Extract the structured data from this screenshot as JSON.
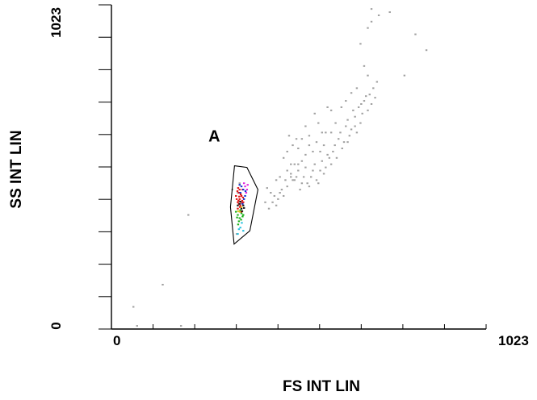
{
  "chart_data": {
    "type": "scatter",
    "title": "",
    "xlabel": "FS INT LIN",
    "ylabel": "SS INT LIN",
    "xlim": [
      0,
      1023
    ],
    "ylim": [
      0,
      1023
    ],
    "x_tick_labels": [
      {
        "value": 0,
        "label": "0"
      },
      {
        "value": 1023,
        "label": "1023"
      }
    ],
    "y_tick_labels": [
      {
        "value": 0,
        "label": "0"
      },
      {
        "value": 1023,
        "label": "1023"
      }
    ],
    "grid": false,
    "gate": {
      "label": "A",
      "polygon": [
        [
          336,
          515
        ],
        [
          370,
          510
        ],
        [
          400,
          440
        ],
        [
          378,
          310
        ],
        [
          335,
          268
        ],
        [
          325,
          385
        ]
      ]
    },
    "series": [
      {
        "color": "#a0a0a0",
        "points": [
          [
            60,
            70
          ],
          [
            70,
            10
          ],
          [
            140,
            140
          ],
          [
            190,
            10
          ],
          [
            210,
            360
          ],
          [
            330,
            440
          ],
          [
            345,
            430
          ],
          [
            350,
            460
          ],
          [
            342,
            300
          ],
          [
            420,
            400
          ],
          [
            430,
            380
          ],
          [
            440,
            400
          ],
          [
            445,
            420
          ],
          [
            450,
            390
          ],
          [
            455,
            410
          ],
          [
            460,
            430
          ],
          [
            465,
            440
          ],
          [
            470,
            420
          ],
          [
            475,
            470
          ],
          [
            480,
            450
          ],
          [
            490,
            480
          ],
          [
            500,
            470
          ],
          [
            510,
            500
          ],
          [
            515,
            440
          ],
          [
            520,
            460
          ],
          [
            525,
            480
          ],
          [
            530,
            510
          ],
          [
            535,
            460
          ],
          [
            540,
            450
          ],
          [
            545,
            480
          ],
          [
            550,
            500
          ],
          [
            555,
            520
          ],
          [
            560,
            470
          ],
          [
            565,
            460
          ],
          [
            570,
            500
          ],
          [
            575,
            530
          ],
          [
            580,
            490
          ],
          [
            585,
            510
          ],
          [
            590,
            550
          ],
          [
            595,
            540
          ],
          [
            600,
            520
          ],
          [
            605,
            560
          ],
          [
            610,
            580
          ],
          [
            615,
            540
          ],
          [
            620,
            600
          ],
          [
            625,
            620
          ],
          [
            630,
            570
          ],
          [
            635,
            590
          ],
          [
            640,
            640
          ],
          [
            645,
            660
          ],
          [
            650,
            610
          ],
          [
            655,
            630
          ],
          [
            660,
            690
          ],
          [
            665,
            670
          ],
          [
            670,
            620
          ],
          [
            675,
            700
          ],
          [
            680,
            650
          ],
          [
            685,
            680
          ],
          [
            690,
            720
          ],
          [
            700,
            690
          ],
          [
            705,
            740
          ],
          [
            710,
            710
          ],
          [
            715,
            760
          ],
          [
            720,
            730
          ],
          [
            725,
            780
          ],
          [
            700,
            800
          ],
          [
            690,
            830
          ],
          [
            680,
            900
          ],
          [
            700,
            950
          ],
          [
            710,
            970
          ],
          [
            730,
            990
          ],
          [
            760,
            1000
          ],
          [
            710,
            1010
          ],
          [
            800,
            800
          ],
          [
            830,
            930
          ],
          [
            860,
            880
          ],
          [
            510,
            570
          ],
          [
            520,
            600
          ],
          [
            530,
            640
          ],
          [
            540,
            610
          ],
          [
            555,
            680
          ],
          [
            565,
            650
          ],
          [
            575,
            620
          ],
          [
            590,
            700
          ],
          [
            600,
            690
          ],
          [
            470,
            540
          ],
          [
            480,
            560
          ],
          [
            490,
            520
          ],
          [
            495,
            580
          ],
          [
            505,
            600
          ],
          [
            485,
            610
          ],
          [
            460,
            480
          ],
          [
            450,
            470
          ],
          [
            435,
            430
          ],
          [
            425,
            445
          ],
          [
            550,
            560
          ],
          [
            560,
            590
          ],
          [
            540,
            580
          ],
          [
            530,
            550
          ],
          [
            520,
            530
          ],
          [
            510,
            520
          ],
          [
            490,
            490
          ],
          [
            480,
            500
          ],
          [
            500,
            520
          ],
          [
            505,
            480
          ],
          [
            495,
            470
          ],
          [
            612,
            650
          ],
          [
            628,
            700
          ],
          [
            640,
            720
          ],
          [
            655,
            745
          ],
          [
            670,
            760
          ],
          [
            600,
            620
          ],
          [
            580,
            580
          ],
          [
            570,
            560
          ],
          [
            585,
            620
          ],
          [
            645,
            590
          ],
          [
            665,
            640
          ],
          [
            682,
            710
          ],
          [
            695,
            735
          ]
        ]
      },
      {
        "color": "#e01010",
        "points": [
          [
            340,
            420
          ],
          [
            345,
            400
          ],
          [
            348,
            430
          ],
          [
            350,
            410
          ],
          [
            352,
            390
          ],
          [
            355,
            420
          ],
          [
            358,
            440
          ],
          [
            360,
            400
          ],
          [
            345,
            380
          ],
          [
            350,
            440
          ],
          [
            355,
            370
          ],
          [
            342,
            410
          ],
          [
            348,
            395
          ],
          [
            353,
            425
          ],
          [
            357,
            405
          ],
          [
            346,
            445
          ],
          [
            351,
            385
          ],
          [
            359,
            415
          ],
          [
            344,
            435
          ],
          [
            356,
            398
          ],
          [
            349,
            418
          ],
          [
            347,
            405
          ]
        ]
      },
      {
        "color": "#18b018",
        "points": [
          [
            345,
            360
          ],
          [
            350,
            350
          ],
          [
            355,
            365
          ],
          [
            340,
            370
          ],
          [
            348,
            340
          ],
          [
            358,
            355
          ],
          [
            352,
            375
          ],
          [
            346,
            330
          ],
          [
            354,
            345
          ],
          [
            360,
            360
          ],
          [
            343,
            352
          ]
        ]
      },
      {
        "color": "#1030d0",
        "points": [
          [
            352,
            430
          ],
          [
            360,
            440
          ],
          [
            365,
            420
          ],
          [
            355,
            450
          ],
          [
            362,
            410
          ],
          [
            358,
            395
          ],
          [
            366,
            435
          ],
          [
            350,
            455
          ]
        ]
      },
      {
        "color": "#e020e0",
        "points": [
          [
            365,
            450
          ],
          [
            368,
            430
          ],
          [
            362,
            460
          ],
          [
            370,
            440
          ],
          [
            372,
            455
          ]
        ]
      },
      {
        "color": "#20c0e0",
        "points": [
          [
            345,
            300
          ],
          [
            352,
            320
          ],
          [
            360,
            310
          ],
          [
            356,
            335
          ],
          [
            348,
            315
          ]
        ]
      },
      {
        "color": "#101010",
        "points": [
          [
            350,
            395
          ],
          [
            355,
            380
          ],
          [
            360,
            390
          ],
          [
            345,
            390
          ],
          [
            357,
            372
          ],
          [
            352,
            402
          ],
          [
            362,
            382
          ]
        ]
      },
      {
        "color": "#e0c020",
        "points": [
          [
            350,
            370
          ],
          [
            355,
            385
          ],
          [
            346,
            372
          ]
        ]
      }
    ]
  }
}
